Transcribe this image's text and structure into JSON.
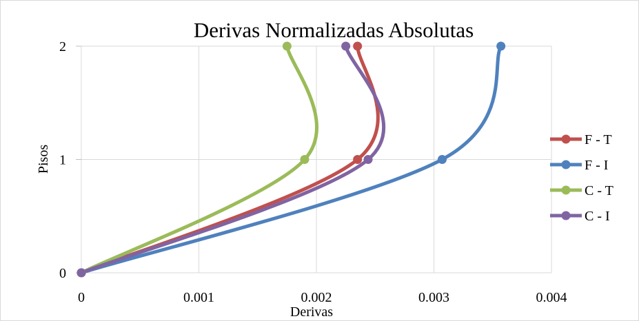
{
  "chart_data": {
    "type": "line",
    "title": "Derivas Normalizadas Absolutas",
    "xlabel": "Derivas",
    "ylabel": "Pisos",
    "xlim": [
      0,
      0.004
    ],
    "ylim": [
      0,
      2
    ],
    "x_ticks": [
      "0",
      "0.001",
      "0.002",
      "0.003",
      "0.004"
    ],
    "y_ticks": [
      "0",
      "1",
      "2"
    ],
    "grid": "vertical and horizontal",
    "legend_position": "right",
    "smoothed": true,
    "series": [
      {
        "name": "F - T",
        "color": "#c0504d",
        "points": [
          [
            0,
            0
          ],
          [
            0.00235,
            1
          ],
          [
            0.00235,
            2
          ]
        ]
      },
      {
        "name": "F - I",
        "color": "#4f81bd",
        "points": [
          [
            0,
            0
          ],
          [
            0.00307,
            1
          ],
          [
            0.00357,
            2
          ]
        ]
      },
      {
        "name": "C - T",
        "color": "#9bbb59",
        "points": [
          [
            0,
            0
          ],
          [
            0.0019,
            1
          ],
          [
            0.00175,
            2
          ]
        ]
      },
      {
        "name": "C - I",
        "color": "#8064a2",
        "points": [
          [
            0,
            0
          ],
          [
            0.00244,
            1
          ],
          [
            0.00225,
            2
          ]
        ]
      }
    ]
  }
}
